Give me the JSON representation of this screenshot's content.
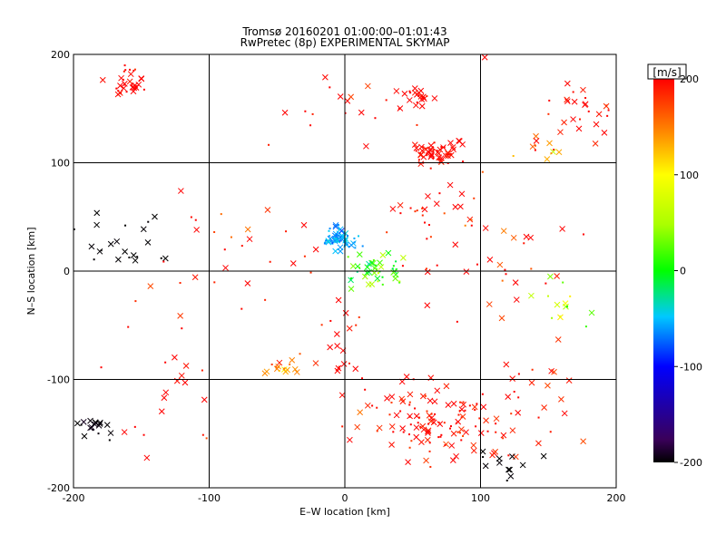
{
  "chart_data": {
    "type": "scatter",
    "title": "Tromsø 20160201 01:00:00–01:01:43",
    "subtitle": "RwPretec (8p) EXPERIMENTAL SKYMAP",
    "xlabel": "E–W location [km]",
    "ylabel": "N–S location [km]",
    "xlim": [
      -200,
      200
    ],
    "ylim": [
      -200,
      200
    ],
    "xticks": [
      -200,
      -100,
      0,
      100,
      200
    ],
    "yticks": [
      -200,
      -100,
      0,
      100,
      200
    ],
    "grid": true,
    "colorbar": {
      "label": "[m/s]",
      "min": -200,
      "max": 200,
      "ticks": [
        200,
        100,
        0,
        -100,
        -200
      ]
    },
    "clusters": [
      {
        "cx": -160,
        "cy": 175,
        "rx": 15,
        "ry": 12,
        "n": 32,
        "v": 200,
        "spread": 15
      },
      {
        "cx": 65,
        "cy": 110,
        "rx": 18,
        "ry": 10,
        "n": 60,
        "v": 200,
        "spread": 12
      },
      {
        "cx": 55,
        "cy": 160,
        "rx": 15,
        "ry": 10,
        "n": 22,
        "v": 200,
        "spread": 18
      },
      {
        "cx": 175,
        "cy": 150,
        "rx": 18,
        "ry": 25,
        "n": 25,
        "v": 200,
        "spread": 20
      },
      {
        "cx": 145,
        "cy": 110,
        "rx": 15,
        "ry": 15,
        "n": 12,
        "v": 150,
        "spread": 60
      },
      {
        "cx": -3,
        "cy": 30,
        "rx": 12,
        "ry": 10,
        "n": 60,
        "v": -60,
        "spread": 15
      },
      {
        "cx": 20,
        "cy": 0,
        "rx": 20,
        "ry": 15,
        "n": 45,
        "v": 15,
        "spread": 45
      },
      {
        "cx": 60,
        "cy": 55,
        "rx": 25,
        "ry": 20,
        "n": 18,
        "v": 200,
        "spread": 40
      },
      {
        "cx": 70,
        "cy": -140,
        "rx": 55,
        "ry": 35,
        "n": 130,
        "v": 200,
        "spread": 20
      },
      {
        "cx": -45,
        "cy": -90,
        "rx": 12,
        "ry": 8,
        "n": 16,
        "v": 140,
        "spread": 30
      },
      {
        "cx": -185,
        "cy": -140,
        "rx": 12,
        "ry": 12,
        "n": 18,
        "v": -195,
        "spread": 8
      },
      {
        "cx": -160,
        "cy": 25,
        "rx": 35,
        "ry": 25,
        "n": 22,
        "v": -200,
        "spread": 5
      },
      {
        "cx": 160,
        "cy": -30,
        "rx": 20,
        "ry": 30,
        "n": 14,
        "v": 60,
        "spread": 60
      },
      {
        "cx": 120,
        "cy": -180,
        "rx": 20,
        "ry": 15,
        "n": 12,
        "v": -200,
        "spread": 5
      },
      {
        "cx": -130,
        "cy": -110,
        "rx": 40,
        "ry": 50,
        "n": 20,
        "v": 200,
        "spread": 25
      },
      {
        "cx": 100,
        "cy": 20,
        "rx": 60,
        "ry": 60,
        "n": 40,
        "v": 200,
        "spread": 50
      },
      {
        "cx": -80,
        "cy": 20,
        "rx": 60,
        "ry": 60,
        "n": 30,
        "v": 200,
        "spread": 30
      },
      {
        "cx": 0,
        "cy": 150,
        "rx": 70,
        "ry": 40,
        "n": 20,
        "v": 200,
        "spread": 20
      },
      {
        "cx": 140,
        "cy": -110,
        "rx": 40,
        "ry": 40,
        "n": 15,
        "v": 200,
        "spread": 20
      },
      {
        "cx": 0,
        "cy": -80,
        "rx": 30,
        "ry": 50,
        "n": 25,
        "v": 200,
        "spread": 30
      }
    ]
  }
}
